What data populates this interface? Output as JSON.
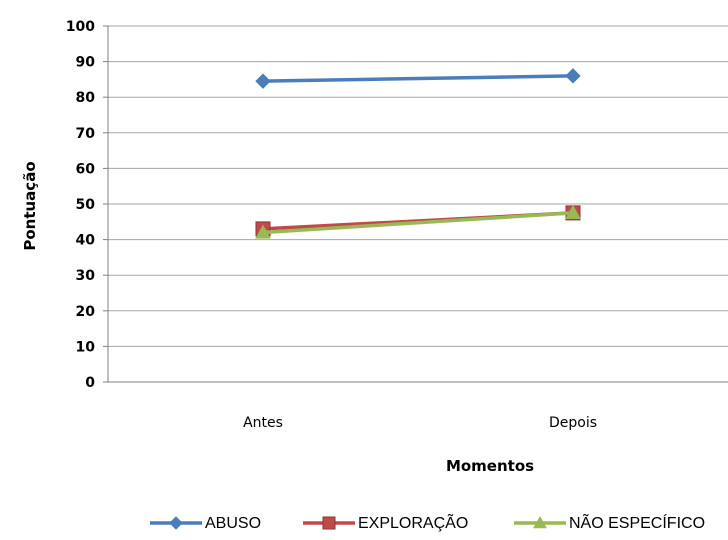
{
  "chart_data": {
    "type": "line",
    "categories": [
      "Antes",
      "Depois"
    ],
    "series": [
      {
        "name": "ABUSO",
        "values": [
          84.5,
          86
        ],
        "color": "#4a7ebb",
        "marker": "diamond"
      },
      {
        "name": "EXPLORAÇÃO",
        "values": [
          43,
          47.5
        ],
        "color": "#be4b48",
        "marker": "square"
      },
      {
        "name": "NÃO ESPECÍFICO",
        "values": [
          42,
          47.5
        ],
        "color": "#98b954",
        "marker": "triangle"
      }
    ],
    "xlabel": "Momentos",
    "ylabel": "Pontuação",
    "ylim": [
      0,
      100
    ],
    "yticks": [
      0,
      10,
      20,
      30,
      40,
      50,
      60,
      70,
      80,
      90,
      100
    ],
    "grid": true,
    "legend": "bottom"
  }
}
